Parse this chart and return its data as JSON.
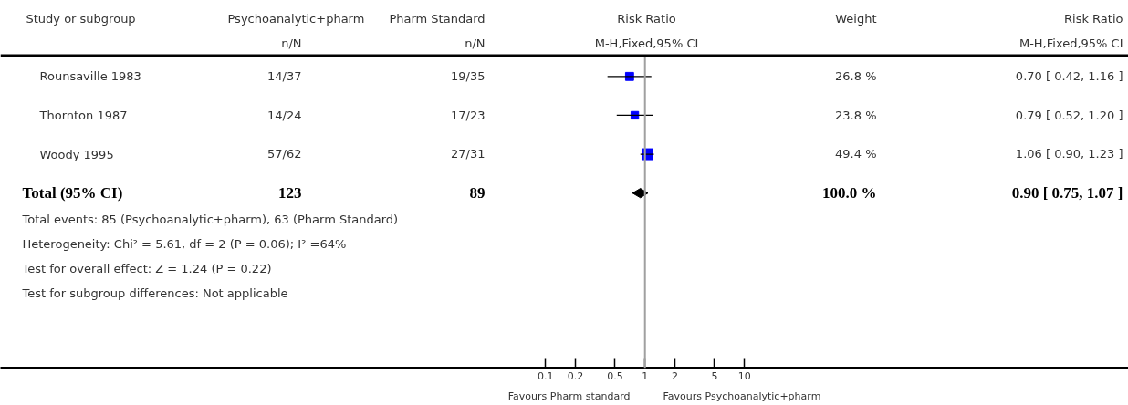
{
  "chart_data": {
    "type": "scatter",
    "orientation": "horizontal",
    "log": "x",
    "categories": [
      "Rounsaville 1983",
      "Thornton 1987",
      "Woody 1995",
      "Total (95% CI)",
      null,
      null,
      null,
      null
    ],
    "series": [
      {
        "type": "bubble",
        "marker": "square",
        "color": "#0000ff",
        "values": [
          0.7,
          0.79,
          1.06,
          null,
          null,
          null,
          null,
          null
        ],
        "errors": [
          [
            0.42,
            1.16
          ],
          [
            0.52,
            1.2
          ],
          [
            0.9,
            1.23
          ],
          null,
          null,
          null,
          null,
          null
        ],
        "sizes": [
          0.54,
          0.48,
          1,
          null,
          null,
          null,
          null,
          null
        ]
      },
      {
        "marker": "diamond",
        "color": "#000000",
        "values": [
          null,
          null,
          null,
          0.9,
          null,
          null,
          null,
          null
        ],
        "errors": [
          null,
          null,
          null,
          [
            0.75,
            1.07
          ],
          null,
          null,
          null,
          null
        ]
      }
    ],
    "xlim": [
      3.3e-07,
      72800
    ],
    "xticks": [
      0.1,
      0.2,
      0.5,
      1,
      2,
      5,
      10
    ],
    "grid": false,
    "ref_lines": [
      {
        "axis": "x",
        "value": 1,
        "color": "#a0a0a0"
      }
    ],
    "annotations": [
      "Study or subgroup",
      "Psychoanalytic+pharm",
      "Pharm Standard",
      "Risk Ratio",
      "Weight",
      "Risk Ratio",
      "n/N",
      "n/N",
      "M-H,Fixed,95% CI",
      "M-H,Fixed,95% CI",
      "14/37",
      "19/35",
      "14/24",
      "17/23",
      "57/62",
      "27/31",
      "123",
      "89",
      "26.8 %",
      "23.8 %",
      "49.4 %",
      "100.0 %",
      "Total events: 85 (Psychoanalytic+pharm), 63 (Pharm Standard)",
      "Heterogeneity: Chi² = 5.61, df = 2 (P = 0.06); I² =64%",
      "Test for overall effect: Z = 1.24 (P = 0.22)",
      "Test for subgroup differences: Not applicable",
      "Favours Pharm standard",
      "Favours Psychoanalytic+pharm",
      "0.70 [ 0.42, 1.16 ]",
      "0.79 [ 0.52, 1.20 ]",
      "1.06 [ 0.90, 1.23 ]",
      "0.90 [ 0.75, 1.07 ]"
    ]
  }
}
